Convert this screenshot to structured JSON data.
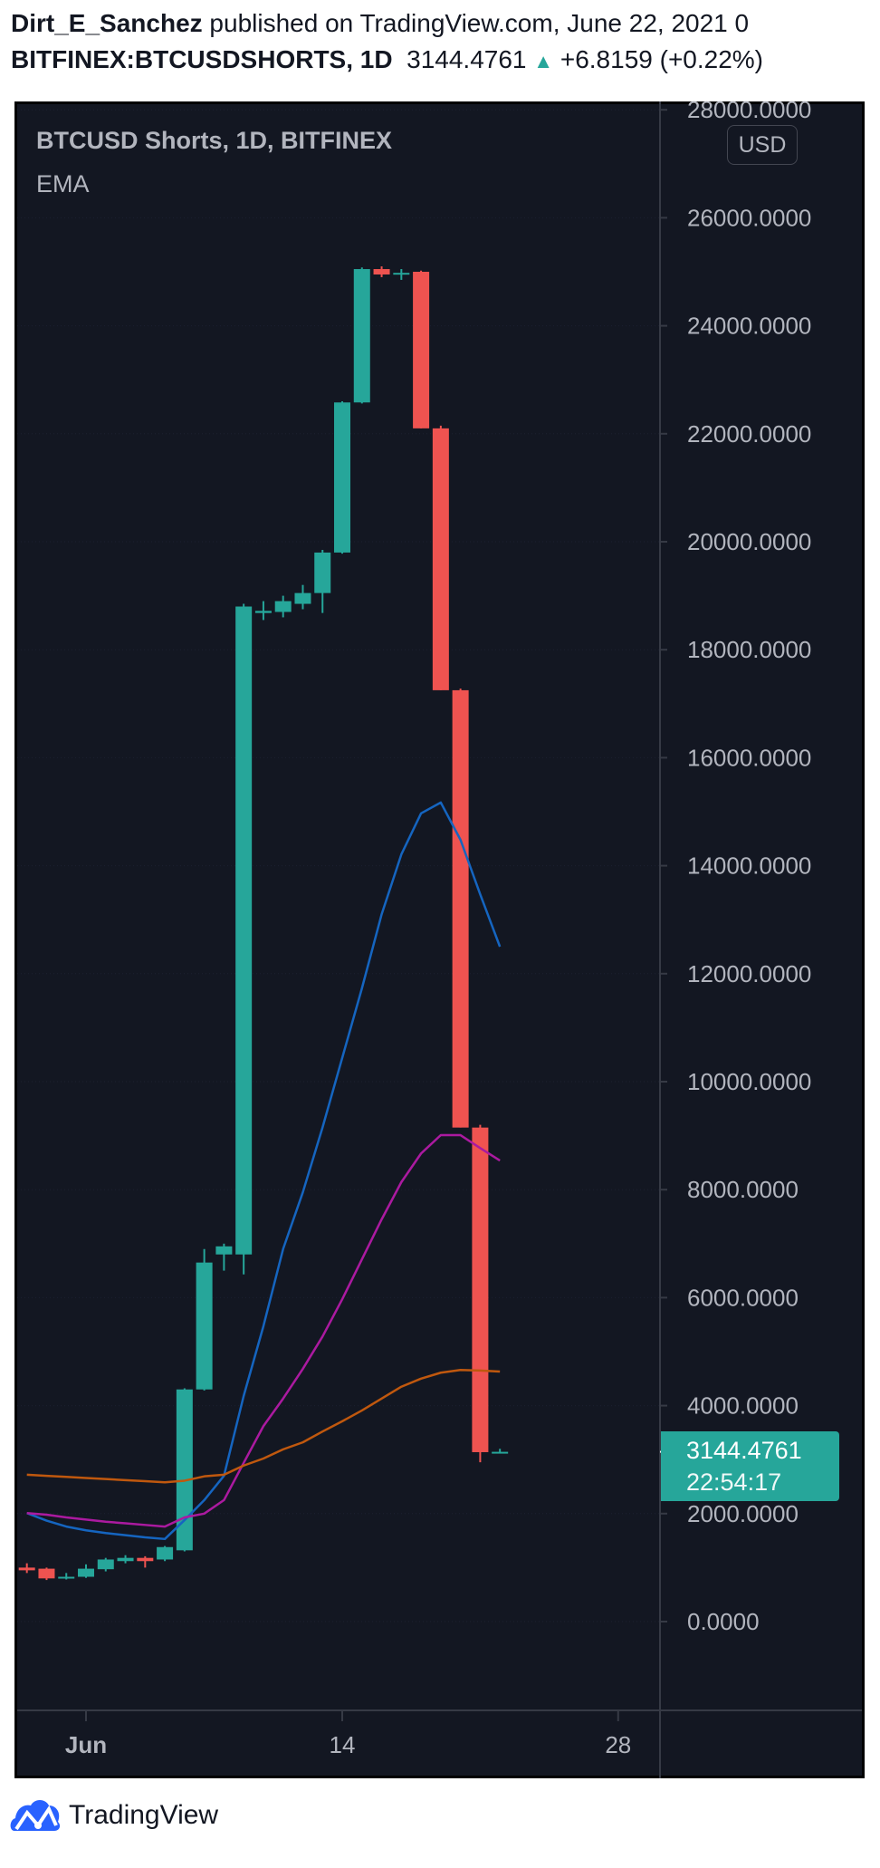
{
  "header": {
    "author": "Dirt_E_Sanchez",
    "published_text": "published on TradingView.com, June 22, 2021 0",
    "symbol": "BITFINEX:BTCUSDSHORTS, 1D",
    "last_price": "3144.4761",
    "change": "+6.8159 (+0.22%)",
    "change_icon": "triangle-up-icon"
  },
  "legend": {
    "title": "BTCUSD Shorts, 1D, BITFINEX",
    "indicator": "EMA"
  },
  "currency_badge": "USD",
  "last_price_label": {
    "price": "3144.4761",
    "countdown": "22:54:17"
  },
  "footer": {
    "brand": "TradingView"
  },
  "colors": {
    "up": "#26a69a",
    "down": "#ef5350",
    "background": "#131722",
    "ema_fast": "#1565c0",
    "ema_mid": "#ab1aa0",
    "ema_slow": "#c0580e",
    "logo": "#2962ff"
  },
  "chart_data": {
    "type": "candlestick",
    "title": "BTCUSD Shorts, 1D, BITFINEX",
    "ylim": [
      -2500,
      28000
    ],
    "y_ticks": [
      "28000.0000",
      "26000.0000",
      "24000.0000",
      "22000.0000",
      "20000.0000",
      "18000.0000",
      "16000.0000",
      "14000.0000",
      "12000.0000",
      "10000.0000",
      "8000.0000",
      "6000.0000",
      "4000.0000",
      "2000.0000",
      "0.0000"
    ],
    "y_tick_values": [
      28000,
      26000,
      24000,
      22000,
      20000,
      18000,
      16000,
      14000,
      12000,
      10000,
      8000,
      6000,
      4000,
      2000,
      0
    ],
    "x_ticks": [
      {
        "label": "Jun",
        "date": "2021-06-01"
      },
      {
        "label": "14",
        "date": "2021-06-14"
      },
      {
        "label": "28",
        "date": "2021-06-28"
      }
    ],
    "candles": [
      {
        "date": "2021-05-29",
        "o": 1000,
        "h": 1080,
        "l": 900,
        "c": 950
      },
      {
        "date": "2021-05-30",
        "o": 980,
        "h": 1000,
        "l": 770,
        "c": 800
      },
      {
        "date": "2021-05-31",
        "o": 810,
        "h": 900,
        "l": 780,
        "c": 830
      },
      {
        "date": "2021-06-01",
        "o": 830,
        "h": 1060,
        "l": 810,
        "c": 980
      },
      {
        "date": "2021-06-02",
        "o": 970,
        "h": 1180,
        "l": 930,
        "c": 1150
      },
      {
        "date": "2021-06-03",
        "o": 1120,
        "h": 1230,
        "l": 1080,
        "c": 1180
      },
      {
        "date": "2021-06-04",
        "o": 1180,
        "h": 1210,
        "l": 1000,
        "c": 1120
      },
      {
        "date": "2021-06-05",
        "o": 1150,
        "h": 1400,
        "l": 1120,
        "c": 1380
      },
      {
        "date": "2021-06-06",
        "o": 1320,
        "h": 4320,
        "l": 1300,
        "c": 4300
      },
      {
        "date": "2021-06-07",
        "o": 4300,
        "h": 6900,
        "l": 4280,
        "c": 6650
      },
      {
        "date": "2021-06-08",
        "o": 6800,
        "h": 7000,
        "l": 6500,
        "c": 6950
      },
      {
        "date": "2021-06-09",
        "o": 6800,
        "h": 18850,
        "l": 6430,
        "c": 18800
      },
      {
        "date": "2021-06-10",
        "o": 18680,
        "h": 18900,
        "l": 18550,
        "c": 18720
      },
      {
        "date": "2021-06-11",
        "o": 18700,
        "h": 19000,
        "l": 18600,
        "c": 18900
      },
      {
        "date": "2021-06-12",
        "o": 18850,
        "h": 19200,
        "l": 18750,
        "c": 19050
      },
      {
        "date": "2021-06-13",
        "o": 19050,
        "h": 19850,
        "l": 18680,
        "c": 19800
      },
      {
        "date": "2021-06-14",
        "o": 19800,
        "h": 22600,
        "l": 19780,
        "c": 22580
      },
      {
        "date": "2021-06-15",
        "o": 22580,
        "h": 25080,
        "l": 22560,
        "c": 25050
      },
      {
        "date": "2021-06-16",
        "o": 25050,
        "h": 25100,
        "l": 24900,
        "c": 24950
      },
      {
        "date": "2021-06-17",
        "o": 24950,
        "h": 25050,
        "l": 24850,
        "c": 24980
      },
      {
        "date": "2021-06-18",
        "o": 25000,
        "h": 25020,
        "l": 22100,
        "c": 22100
      },
      {
        "date": "2021-06-19",
        "o": 22100,
        "h": 22150,
        "l": 17250,
        "c": 17250
      },
      {
        "date": "2021-06-20",
        "o": 17250,
        "h": 17280,
        "l": 9150,
        "c": 9150
      },
      {
        "date": "2021-06-21",
        "o": 9150,
        "h": 9200,
        "l": 2950,
        "c": 3138
      },
      {
        "date": "2021-06-22",
        "o": 3138,
        "h": 3200,
        "l": 3120,
        "c": 3144.4761
      }
    ],
    "series": [
      {
        "color_key": "ema_fast",
        "values": [
          2010,
          1870,
          1760,
          1690,
          1640,
          1600,
          1560,
          1530,
          1880,
          2250,
          2700,
          4180,
          5470,
          6900,
          7950,
          9150,
          10440,
          11730,
          13100,
          14210,
          14970,
          15170,
          14480,
          13470,
          12500
        ]
      },
      {
        "color_key": "ema_mid",
        "values": [
          2010,
          1980,
          1930,
          1890,
          1850,
          1820,
          1790,
          1760,
          1930,
          2000,
          2250,
          2940,
          3620,
          4130,
          4680,
          5280,
          5970,
          6710,
          7450,
          8140,
          8670,
          9010,
          9010,
          8770,
          8540
        ]
      },
      {
        "color_key": "ema_slow",
        "values": [
          2720,
          2700,
          2680,
          2660,
          2640,
          2620,
          2600,
          2580,
          2610,
          2690,
          2720,
          2890,
          3020,
          3190,
          3320,
          3520,
          3710,
          3910,
          4130,
          4350,
          4500,
          4610,
          4660,
          4650,
          4630
        ]
      }
    ]
  }
}
